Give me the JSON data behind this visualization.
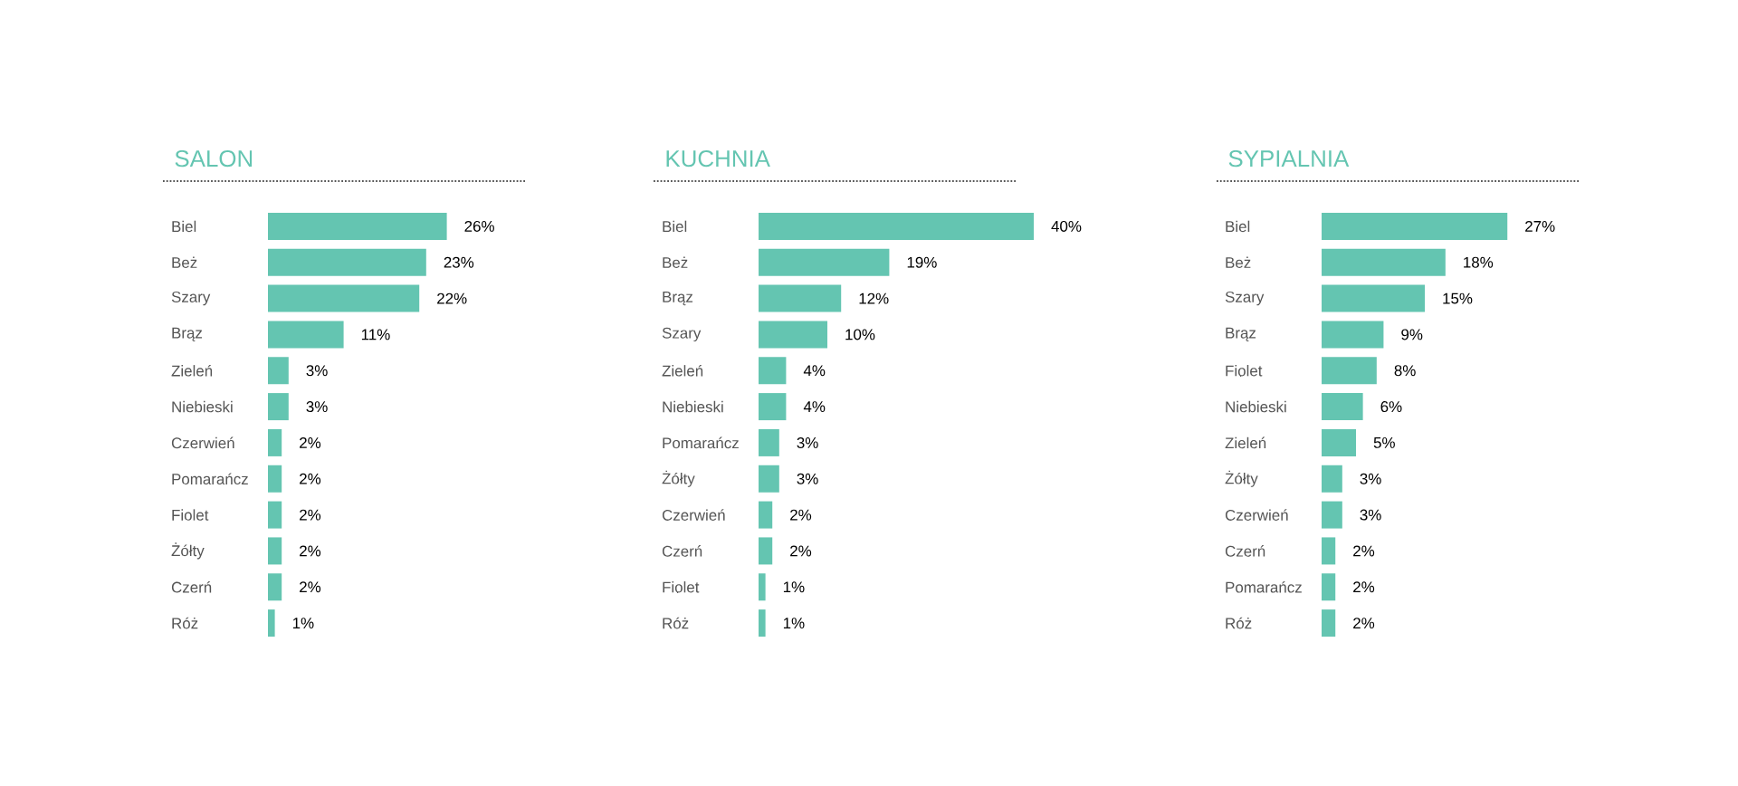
{
  "chart_data": [
    {
      "type": "bar",
      "orientation": "horizontal",
      "title": "SALON",
      "color": "#64c5b1",
      "categories": [
        "Biel",
        "Beż",
        "Szary",
        "Brąz",
        "Zieleń",
        "Niebieski",
        "Czerwień",
        "Pomarańcz",
        "Fiolet",
        "Żółty",
        "Czerń",
        "Róż"
      ],
      "values": [
        26,
        23,
        22,
        11,
        3,
        3,
        2,
        2,
        2,
        2,
        2,
        1
      ],
      "value_labels": [
        "26%",
        "23%",
        "22%",
        "11%",
        "3%",
        "3%",
        "2%",
        "2%",
        "2%",
        "2%",
        "2%",
        "1%"
      ]
    },
    {
      "type": "bar",
      "orientation": "horizontal",
      "title": "KUCHNIA",
      "color": "#64c5b1",
      "categories": [
        "Biel",
        "Beż",
        "Brąz",
        "Szary",
        "Zieleń",
        "Niebieski",
        "Pomarańcz",
        "Żółty",
        "Czerwień",
        "Czerń",
        "Fiolet",
        "Róż"
      ],
      "values": [
        40,
        19,
        12,
        10,
        4,
        4,
        3,
        3,
        2,
        2,
        1,
        1
      ],
      "value_labels": [
        "40%",
        "19%",
        "12%",
        "10%",
        "4%",
        "4%",
        "3%",
        "3%",
        "2%",
        "2%",
        "1%",
        "1%"
      ]
    },
    {
      "type": "bar",
      "orientation": "horizontal",
      "title": "SYPIALNIA",
      "color": "#64c5b1",
      "categories": [
        "Biel",
        "Beż",
        "Szary",
        "Brąz",
        "Fiolet",
        "Niebieski",
        "Zieleń",
        "Żółty",
        "Czerwień",
        "Czerń",
        "Pomarańcz",
        "Róż"
      ],
      "values": [
        27,
        18,
        15,
        9,
        8,
        6,
        5,
        3,
        3,
        2,
        2,
        2
      ],
      "value_labels": [
        "27%",
        "18%",
        "15%",
        "9%",
        "8%",
        "6%",
        "5%",
        "3%",
        "3%",
        "2%",
        "2%",
        "2%"
      ]
    }
  ]
}
